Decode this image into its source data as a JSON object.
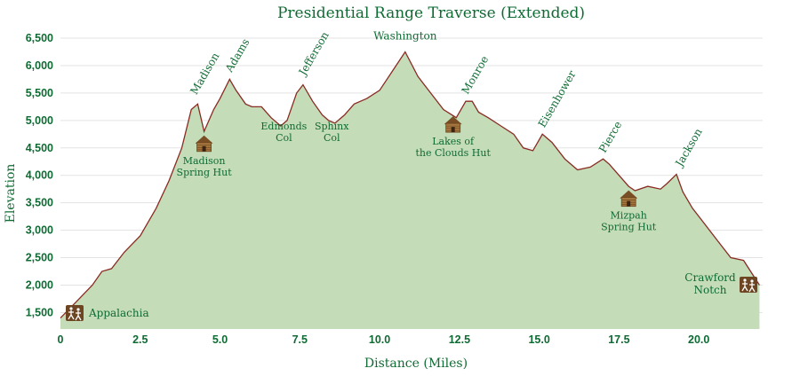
{
  "chart_data": {
    "type": "area",
    "title": "Presidential Range Traverse (Extended)",
    "xlabel": "Distance (Miles)",
    "ylabel": "Elevation",
    "xlim": [
      0,
      22
    ],
    "ylim": [
      1200,
      6500
    ],
    "xticks": [
      0,
      2.5,
      5.0,
      7.5,
      10.0,
      12.5,
      15.0,
      17.5,
      20.0
    ],
    "xtick_labels": [
      "0",
      "2.5",
      "5.0",
      "7.5",
      "10.0",
      "12.5",
      "15.0",
      "17.5",
      "20.0"
    ],
    "yticks": [
      1500,
      2000,
      2500,
      3000,
      3500,
      4000,
      4500,
      5000,
      5500,
      6000,
      6500
    ],
    "ytick_labels": [
      "1,500",
      "2,000",
      "2,500",
      "3,000",
      "3,500",
      "4,000",
      "4,500",
      "5,000",
      "5,500",
      "6,000",
      "6,500"
    ],
    "grid": true,
    "series": [
      {
        "x": [
          0,
          0.5,
          1.0,
          1.3,
          1.6,
          2.0,
          2.5,
          3.0,
          3.4,
          3.8,
          4.1,
          4.3,
          4.5,
          4.8,
          5.0,
          5.3,
          5.5,
          5.8,
          6.0,
          6.3,
          6.6,
          6.9,
          7.1,
          7.4,
          7.6,
          7.9,
          8.2,
          8.4,
          8.6,
          8.9,
          9.2,
          9.6,
          10.0,
          10.4,
          10.8,
          11.2,
          11.6,
          12.0,
          12.4,
          12.7,
          12.9,
          13.1,
          13.4,
          13.8,
          14.2,
          14.5,
          14.8,
          15.1,
          15.4,
          15.8,
          16.2,
          16.6,
          17.0,
          17.2,
          17.5,
          17.8,
          18.0,
          18.4,
          18.8,
          19.0,
          19.3,
          19.5,
          19.8,
          20.2,
          20.6,
          21.0,
          21.4,
          21.9
        ],
        "y": [
          1400,
          1700,
          2000,
          2250,
          2300,
          2600,
          2900,
          3400,
          3900,
          4500,
          5200,
          5300,
          4800,
          5200,
          5400,
          5750,
          5550,
          5300,
          5250,
          5250,
          5050,
          4900,
          5000,
          5500,
          5650,
          5350,
          5100,
          5000,
          4950,
          5100,
          5300,
          5400,
          5550,
          5900,
          6250,
          5800,
          5500,
          5200,
          5050,
          5350,
          5350,
          5150,
          5050,
          4900,
          4750,
          4500,
          4450,
          4750,
          4600,
          4300,
          4100,
          4150,
          4300,
          4200,
          4000,
          3800,
          3720,
          3800,
          3750,
          3850,
          4020,
          3700,
          3400,
          3100,
          2800,
          2500,
          2450,
          2000
        ]
      }
    ],
    "peaks": [
      {
        "name": "Madison",
        "x": 4.2,
        "y": 5360
      },
      {
        "name": "Adams",
        "x": 5.3,
        "y": 5770
      },
      {
        "name": "Jefferson",
        "x": 7.6,
        "y": 5710
      },
      {
        "name": "Washington",
        "x": 10.8,
        "y": 6250
      },
      {
        "name": "Monroe",
        "x": 12.7,
        "y": 5370
      },
      {
        "name": "Eisenhower",
        "x": 15.1,
        "y": 4760
      },
      {
        "name": "Pierce",
        "x": 17.0,
        "y": 4300
      },
      {
        "name": "Jackson",
        "x": 19.4,
        "y": 4050
      }
    ],
    "cols": [
      {
        "line1": "Edmonds",
        "line2": "Col",
        "x": 7.0
      },
      {
        "line1": "Sphinx",
        "line2": "Col",
        "x": 8.5
      }
    ],
    "huts": [
      {
        "line1": "Madison",
        "line2": "Spring Hut",
        "x": 4.5,
        "y": 4500
      },
      {
        "line1": "Lakes of",
        "line2": "the Clouds Hut",
        "x": 12.3,
        "y": 4850
      },
      {
        "line1": "Mizpah",
        "line2": "Spring Hut",
        "x": 17.8,
        "y": 3500
      }
    ],
    "trailheads": [
      {
        "name": "Appalachia",
        "x": 0.3,
        "y": 1450
      },
      {
        "line1": "Crawford",
        "line2": "Notch",
        "x": 21.5,
        "y": 1800
      }
    ]
  }
}
